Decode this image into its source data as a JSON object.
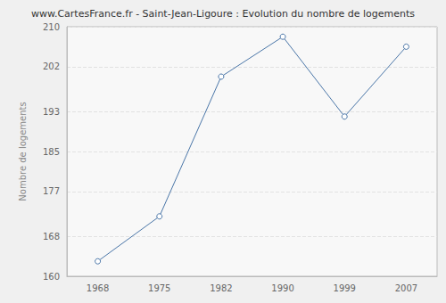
{
  "chart_data": {
    "type": "line",
    "title": "www.CartesFrance.fr - Saint-Jean-Ligoure : Evolution du nombre de logements",
    "ylabel": "Nombre de logements",
    "categories": [
      "1968",
      "1975",
      "1982",
      "1990",
      "1999",
      "2007"
    ],
    "values": [
      163,
      172,
      200,
      208,
      192,
      206
    ],
    "color": "#4a76a8",
    "marker": "circle",
    "ylim": [
      160,
      210
    ],
    "yticks": [
      160,
      168,
      177,
      185,
      193,
      202,
      210
    ],
    "grid": true
  }
}
